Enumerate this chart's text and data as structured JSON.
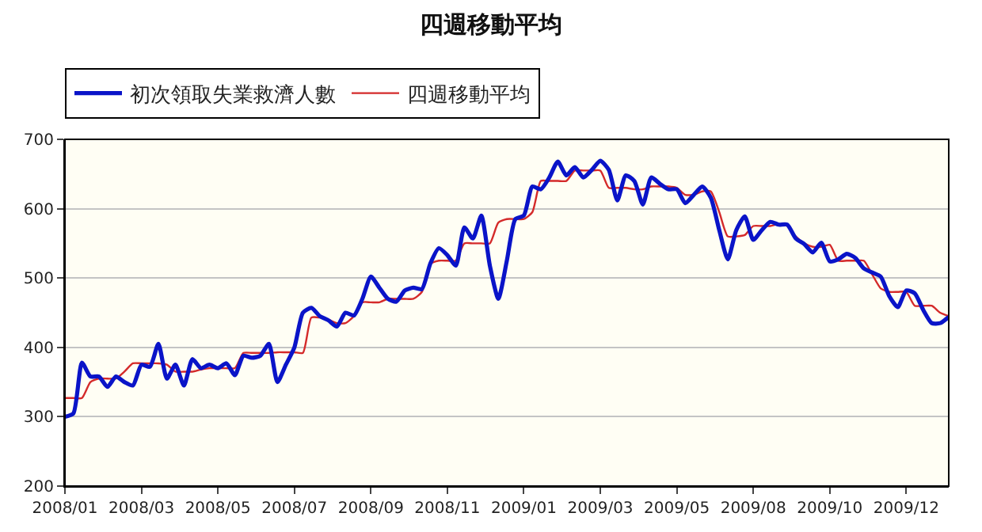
{
  "chart_data": {
    "type": "line",
    "title": "四週移動平均",
    "categories": [
      "2008/01",
      null,
      null,
      null,
      null,
      null,
      null,
      null,
      null,
      "2008/03",
      null,
      null,
      null,
      null,
      null,
      null,
      null,
      null,
      "2008/05",
      null,
      null,
      null,
      null,
      null,
      null,
      null,
      null,
      "2008/07",
      null,
      null,
      null,
      null,
      null,
      null,
      null,
      null,
      "2008/09",
      null,
      null,
      null,
      null,
      null,
      null,
      null,
      null,
      "2008/11",
      null,
      null,
      null,
      null,
      null,
      null,
      null,
      null,
      "2009/01",
      null,
      null,
      null,
      null,
      null,
      null,
      null,
      null,
      "2009/03",
      null,
      null,
      null,
      null,
      null,
      null,
      null,
      null,
      "2009/05",
      null,
      null,
      null,
      null,
      null,
      null,
      null,
      null,
      "2009/08",
      null,
      null,
      null,
      null,
      null,
      null,
      null,
      null,
      "2009/10",
      null,
      null,
      null,
      null,
      null,
      null,
      null,
      null,
      "2009/12",
      null,
      null,
      null,
      null,
      null
    ],
    "series": [
      {
        "name": "初次領取失業救濟人數",
        "color": "#0a14c8",
        "values": [
          300,
          305,
          378,
          358,
          358,
          343,
          358,
          350,
          345,
          375,
          372,
          405,
          355,
          375,
          345,
          383,
          370,
          375,
          370,
          377,
          360,
          388,
          385,
          388,
          405,
          350,
          375,
          400,
          450,
          457,
          445,
          439,
          430,
          450,
          446,
          470,
          502,
          486,
          470,
          466,
          482,
          486,
          484,
          521,
          543,
          533,
          518,
          573,
          557,
          590,
          518,
          470,
          525,
          585,
          590,
          632,
          628,
          645,
          668,
          648,
          660,
          645,
          656,
          669,
          656,
          612,
          648,
          640,
          606,
          645,
          636,
          628,
          628,
          608,
          620,
          632,
          616,
          569,
          527,
          569,
          589,
          555,
          569,
          581,
          577,
          577,
          557,
          549,
          537,
          551,
          524,
          527,
          535,
          529,
          514,
          508,
          502,
          474,
          458,
          482,
          478,
          454,
          435,
          435,
          444
        ]
      },
      {
        "name": "四週移動平均",
        "color": "#d42a2a",
        "values": [
          327,
          327,
          327,
          350,
          355,
          355,
          355,
          365,
          377,
          377,
          377,
          377,
          375,
          365,
          365,
          365,
          368,
          370,
          370,
          370,
          370,
          392,
          392,
          392,
          392,
          393,
          393,
          393,
          392,
          443,
          443,
          440,
          435,
          435,
          445,
          465,
          465,
          465,
          470,
          470,
          470,
          470,
          480,
          520,
          525,
          525,
          525,
          550,
          550,
          550,
          550,
          580,
          585,
          585,
          585,
          595,
          640,
          640,
          640,
          640,
          655,
          655,
          655,
          655,
          630,
          630,
          630,
          628,
          628,
          632,
          632,
          632,
          630,
          620,
          620,
          625,
          625,
          595,
          560,
          560,
          562,
          575,
          575,
          575,
          578,
          575,
          560,
          550,
          545,
          545,
          548,
          525,
          525,
          525,
          525,
          505,
          485,
          480,
          480,
          480,
          460,
          460,
          460,
          450,
          445
        ]
      }
    ],
    "ylim": [
      200,
      700
    ],
    "yticks": [
      200,
      300,
      400,
      500,
      600,
      700
    ],
    "grid": "y",
    "legend": "top left",
    "marker": "none",
    "line_style": "solid"
  }
}
